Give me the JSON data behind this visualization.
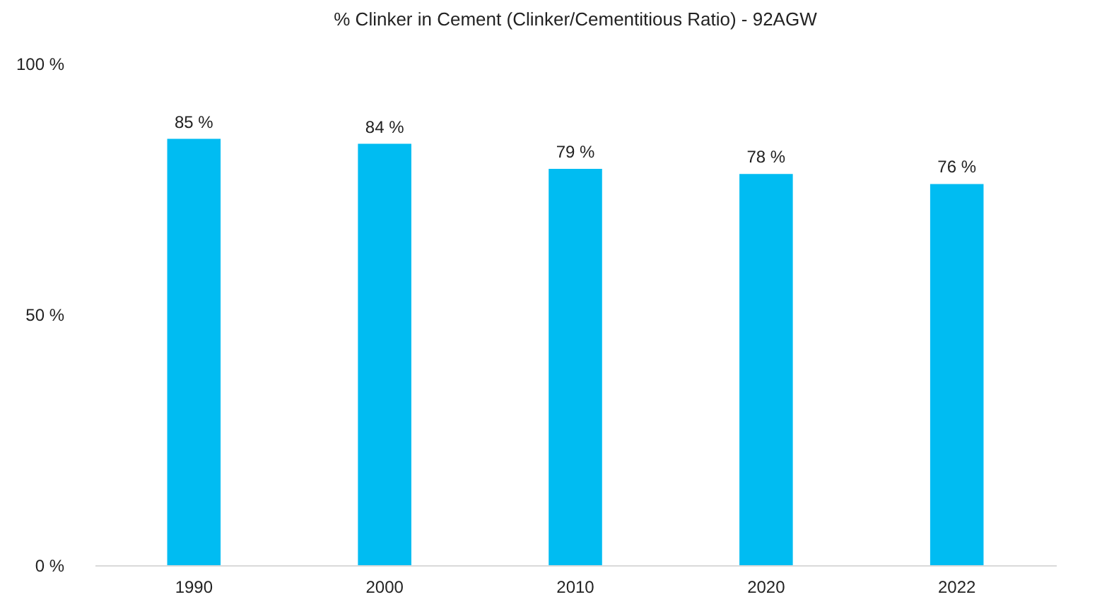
{
  "chart_data": {
    "type": "bar",
    "title": "% Clinker in Cement  (Clinker/Cementitious Ratio) - 92AGW",
    "categories": [
      "1990",
      "2000",
      "2010",
      "2020",
      "2022"
    ],
    "values": [
      85,
      84,
      79,
      78,
      76
    ],
    "value_labels": [
      "85 %",
      "84 %",
      "79 %",
      "78 %",
      "76 %"
    ],
    "color": "#00bcf2",
    "ylim": [
      0,
      100
    ],
    "yticks": [
      {
        "value": 0,
        "label": "0 %"
      },
      {
        "value": 50,
        "label": "50 %"
      },
      {
        "value": 100,
        "label": "100 %"
      }
    ],
    "grid": false
  }
}
